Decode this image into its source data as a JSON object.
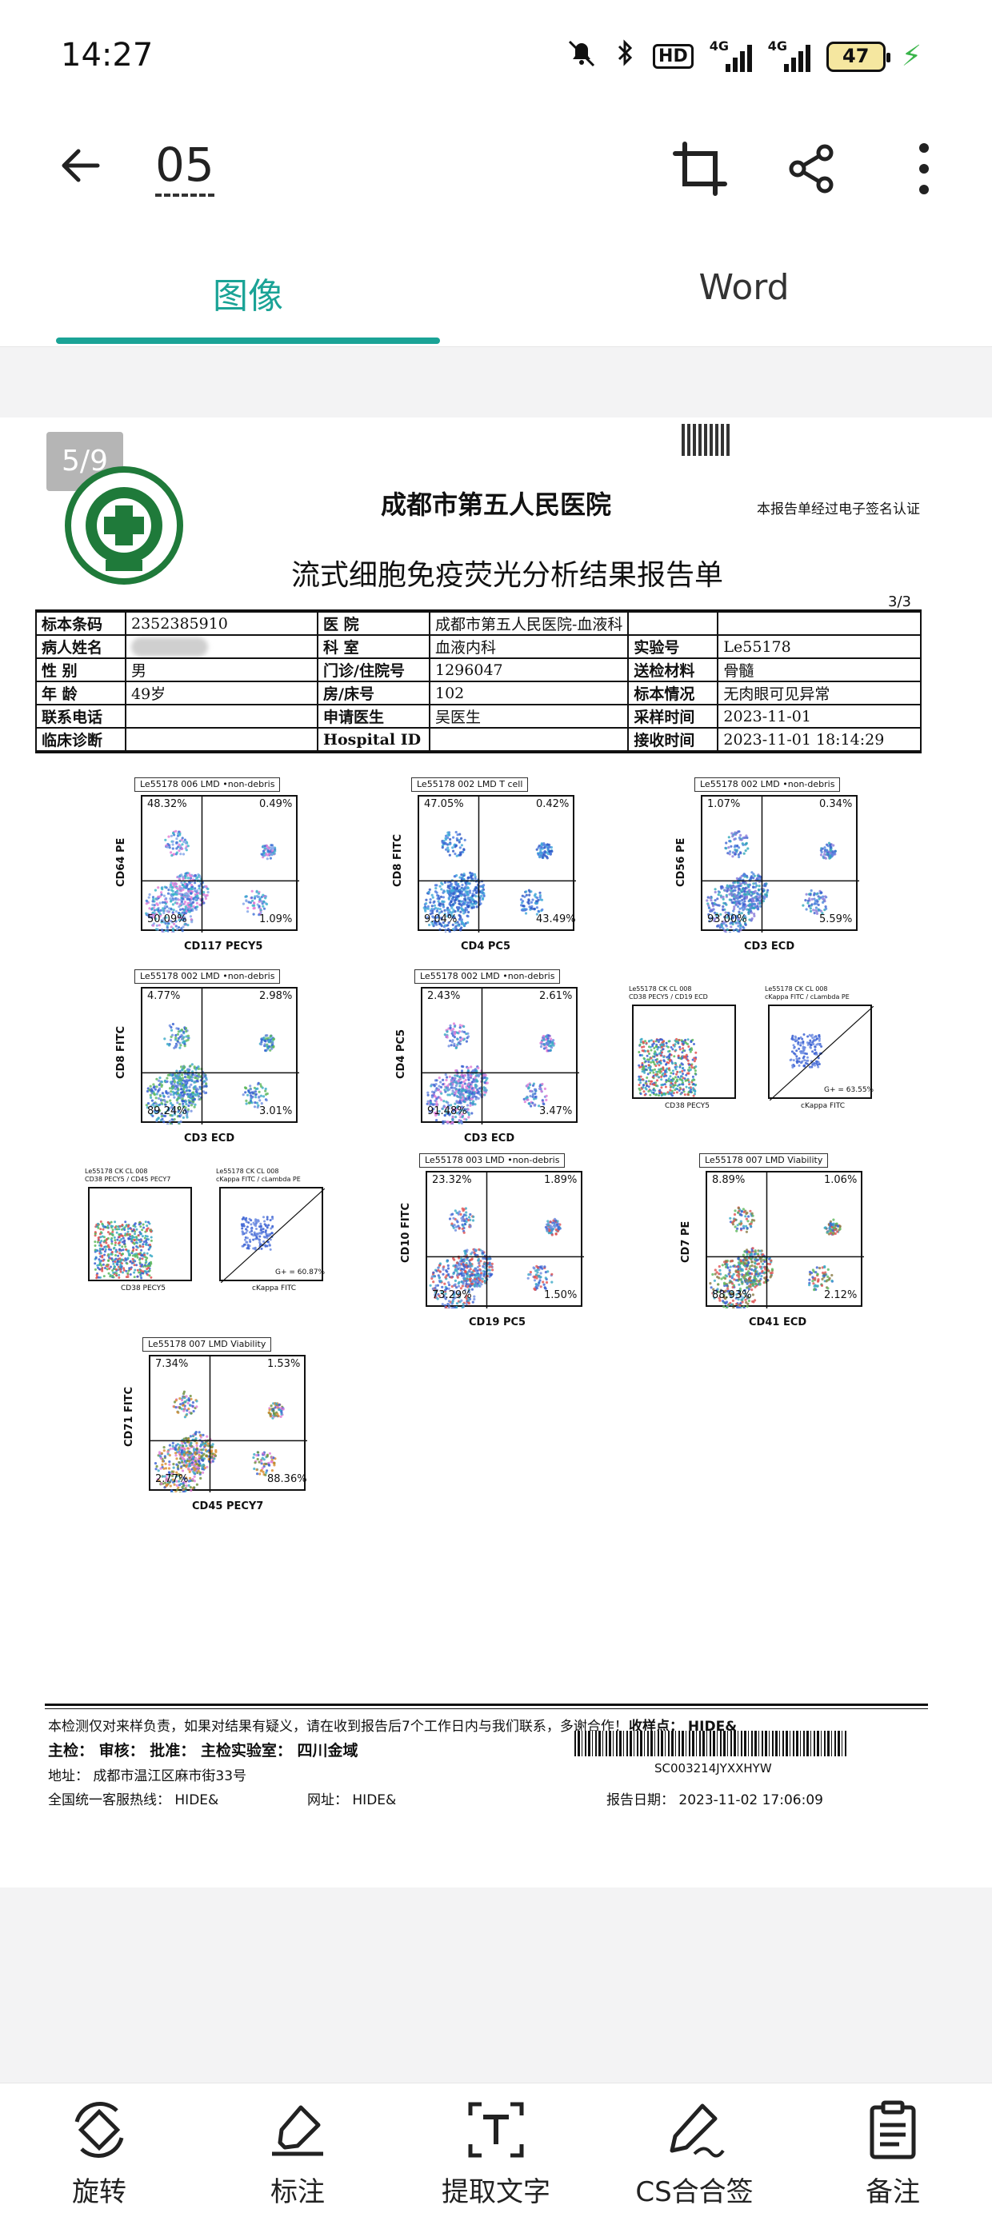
{
  "status_bar": {
    "time": "14:27",
    "battery": "47",
    "hd": "HD",
    "net1": "4G",
    "net2": "4G"
  },
  "toolbar": {
    "document_name": "05"
  },
  "tabs": [
    {
      "label": "图像",
      "active": true
    },
    {
      "label": "Word",
      "active": false
    }
  ],
  "viewer": {
    "page_indicator": "5/9"
  },
  "report": {
    "hospital": "成都市第五人民医院",
    "signature_note": "本报告单经过电子签名认证",
    "title": "流式细胞免疫荧光分析结果报告单",
    "page": "3/3",
    "rows": [
      {
        "k1": "标本条码",
        "v1": "2352385910",
        "k2": "医 院",
        "v2": "成都市第五人民医院-血液科",
        "k3": "",
        "v3": ""
      },
      {
        "k1": "病人姓名",
        "v1": "",
        "k2": "科 室",
        "v2": "血液内科",
        "k3": "实验号",
        "v3": "Le55178"
      },
      {
        "k1": "性 别",
        "v1": "男",
        "k2": "门诊/住院号",
        "v2": "1296047",
        "k3": "送检材料",
        "v3": "骨髓"
      },
      {
        "k1": "年 龄",
        "v1": "49岁",
        "k2": "房/床号",
        "v2": "102",
        "k3": "标本情况",
        "v3": "无肉眼可见异常"
      },
      {
        "k1": "联系电话",
        "v1": "",
        "k2": "申请医生",
        "v2": "吴医生",
        "k3": "采样时间",
        "v3": "2023-11-01"
      },
      {
        "k1": "临床诊断",
        "v1": "",
        "k2": "Hospital ID",
        "v2": "",
        "k3": "接收时间",
        "v3": "2023-11-01 18:14:29"
      }
    ],
    "plots": [
      {
        "header": "Le55178 006 LMD •non-debris",
        "x_label": "CD117 PECY5",
        "y_label": "CD64 PE",
        "ul": "48.32%",
        "ur": "0.49%",
        "ll": "50.09%",
        "lr": "1.09%"
      },
      {
        "header": "Le55178 002 LMD  T cell",
        "x_label": "CD4 PC5",
        "y_label": "CD8 FITC",
        "ul": "47.05%",
        "ur": "0.42%",
        "ll": "9.04%",
        "lr": "43.49%"
      },
      {
        "header": "Le55178 002 LMD •non-debris",
        "x_label": "CD3 ECD",
        "y_label": "CD56 PE",
        "ul": "1.07%",
        "ur": "0.34%",
        "ll": "93.00%",
        "lr": "5.59%"
      },
      {
        "header": "Le55178 002 LMD •non-debris",
        "x_label": "CD3 ECD",
        "y_label": "CD8 FITC",
        "ul": "4.77%",
        "ur": "2.98%",
        "ll": "89.24%",
        "lr": "3.01%"
      },
      {
        "header": "Le55178 002 LMD •non-debris",
        "x_label": "CD3 ECD",
        "y_label": "CD4 PC5",
        "ul": "2.43%",
        "ur": "2.61%",
        "ll": "91.48%",
        "lr": "3.47%"
      },
      {
        "header": "Le55178 003 LMD •non-debris",
        "x_label": "CD19 PC5",
        "y_label": "CD10 FITC",
        "ul": "23.32%",
        "ur": "1.89%",
        "ll": "73.29%",
        "lr": "1.50%"
      },
      {
        "header": "Le55178 007 LMD Viability",
        "x_label": "CD41 ECD",
        "y_label": "CD7 PE",
        "ul": "8.89%",
        "ur": "1.06%",
        "ll": "88.93%",
        "lr": "2.12%"
      },
      {
        "header": "Le55178 007 LMD Viability",
        "x_label": "CD45 PECY7",
        "y_label": "CD71 FITC",
        "ul": "7.34%",
        "ur": "1.53%",
        "ll": "2.77%",
        "lr": "88.36%"
      }
    ],
    "small_plots": [
      {
        "header": "Le55178 CK CL 008",
        "sub": "CD38 PECY5 / CD19 ECD",
        "x_label": "CD38 PECY5",
        "note": ""
      },
      {
        "header": "Le55178 CK CL 008",
        "sub": "cKappa FITC / cLambda PE",
        "x_label": "cKappa FITC",
        "note": "G+ = 63.55%"
      },
      {
        "header": "Le55178 CK CL 008",
        "sub": "CD38 PECY5 / CD45 PECY7",
        "x_label": "CD38 PECY5",
        "note": ""
      },
      {
        "header": "Le55178 CK CL 008",
        "sub": "cKappa FITC / cLambda PE",
        "x_label": "cKappa FITC",
        "note": "G+ = 60.87%"
      }
    ],
    "footer": {
      "disclaimer": "本检测仅对来样负责，如果对结果有疑义，请在收到报告后7个工作日内与我们联系，多谢合作！",
      "collection_point": "收样点： HIDE&",
      "signers": "主检：      审核：      批准：      主检实验室：  四川金域",
      "address": "地址：  成都市温江区麻市街33号",
      "hotline": "全国统一客服热线：  HIDE&",
      "website": "网址：  HIDE&",
      "barcode_text": "SC003214JYXXHYW",
      "report_date": "报告日期： 2023-11-02 17:06:09"
    }
  },
  "bottom_bar": [
    {
      "label": "旋转",
      "icon": "rotate-icon"
    },
    {
      "label": "标注",
      "icon": "highlighter-icon"
    },
    {
      "label": "提取文字",
      "icon": "extract-text-icon"
    },
    {
      "label": "CS合合签",
      "icon": "signature-icon"
    },
    {
      "label": "备注",
      "icon": "notes-icon"
    }
  ],
  "colors": {
    "accent": "#1aa396"
  }
}
